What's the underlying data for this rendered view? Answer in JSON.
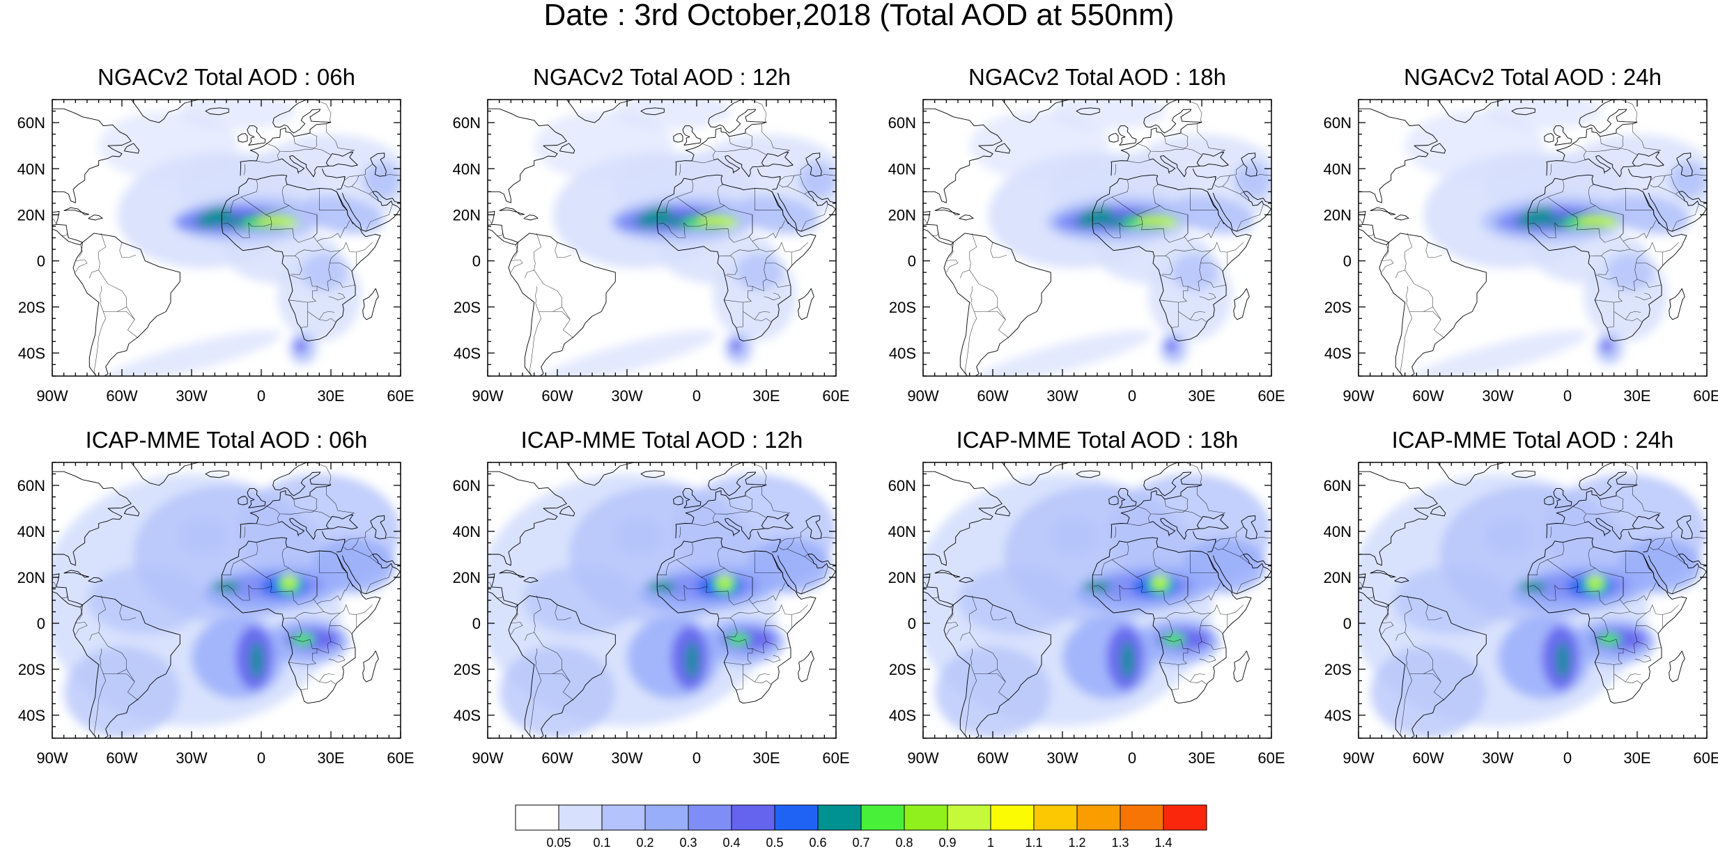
{
  "title": "Date : 3rd October,2018 (Total AOD at 550nm)",
  "panels": [
    {
      "title": "NGACv2 Total AOD : 06h",
      "model": "ngac",
      "hour": 6
    },
    {
      "title": "NGACv2 Total AOD : 12h",
      "model": "ngac",
      "hour": 12
    },
    {
      "title": "NGACv2 Total AOD : 18h",
      "model": "ngac",
      "hour": 18
    },
    {
      "title": "NGACv2 Total AOD : 24h",
      "model": "ngac",
      "hour": 24
    },
    {
      "title": "ICAP-MME Total AOD : 06h",
      "model": "icap",
      "hour": 6
    },
    {
      "title": "ICAP-MME Total AOD : 12h",
      "model": "icap",
      "hour": 12
    },
    {
      "title": "ICAP-MME Total AOD : 18h",
      "model": "icap",
      "hour": 18
    },
    {
      "title": "ICAP-MME Total AOD : 24h",
      "model": "icap",
      "hour": 24
    }
  ],
  "axes": {
    "lon_range": [
      -90,
      60
    ],
    "lat_range": [
      -50,
      70
    ],
    "x_ticks": [
      {
        "value": -90,
        "label": "90W"
      },
      {
        "value": -60,
        "label": "60W"
      },
      {
        "value": -30,
        "label": "30W"
      },
      {
        "value": 0,
        "label": "0"
      },
      {
        "value": 30,
        "label": "30E"
      },
      {
        "value": 60,
        "label": "60E"
      }
    ],
    "y_ticks": [
      {
        "value": 60,
        "label": "60N"
      },
      {
        "value": 40,
        "label": "40N"
      },
      {
        "value": 20,
        "label": "20N"
      },
      {
        "value": 0,
        "label": "0"
      },
      {
        "value": -20,
        "label": "20S"
      },
      {
        "value": -40,
        "label": "40S"
      }
    ]
  },
  "colorbar": {
    "colors": [
      "#ffffff",
      "#d7e0fd",
      "#b4c3fb",
      "#99aefa",
      "#7f8ef6",
      "#6464ee",
      "#1f63f5",
      "#009191",
      "#48f03a",
      "#90f01d",
      "#c4fa3a",
      "#fbfb04",
      "#fbc802",
      "#fa9d00",
      "#f67504",
      "#fb270c"
    ],
    "labels": [
      "0.05",
      "0.1",
      "0.2",
      "0.3",
      "0.4",
      "0.5",
      "0.6",
      "0.7",
      "0.8",
      "0.9",
      "1",
      "1.1",
      "1.2",
      "1.3",
      "1.4"
    ]
  }
}
